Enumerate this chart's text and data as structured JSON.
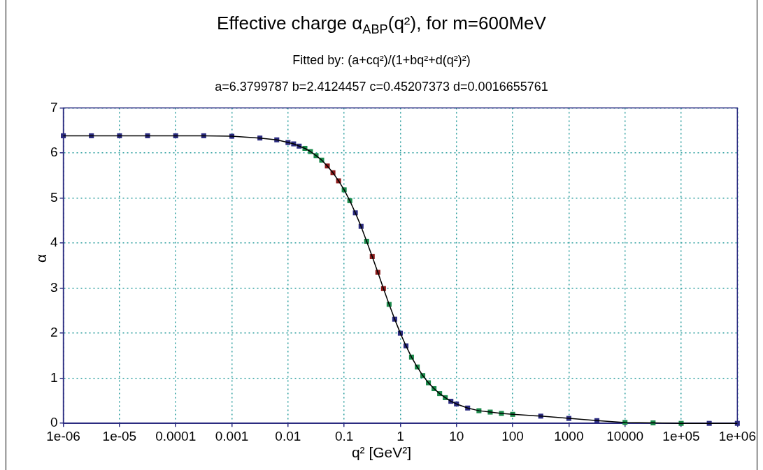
{
  "chart_data": {
    "type": "scatter",
    "title": "Effective charge α$_{ABP}$(q²), for m=600MeV",
    "subtitle": "Fitted by: (a+cq²)/(1+bq²+d(q²)²)",
    "annotations": [
      "a=6.3799787 b=2.4124457 c=0.45207373 d=0.0016655761"
    ],
    "xlabel": "q² [GeV²]",
    "ylabel": "α",
    "log": "x",
    "grid": true,
    "legend": false,
    "marker": "square",
    "x": [
      1e-06,
      3.16e-06,
      1e-05,
      3.16e-05,
      0.0001,
      0.000316,
      0.001,
      0.00316,
      0.00631,
      0.01,
      0.0126,
      0.0158,
      0.02,
      0.0251,
      0.0316,
      0.0398,
      0.0501,
      0.0631,
      0.0794,
      0.1,
      0.126,
      0.158,
      0.2,
      0.251,
      0.316,
      0.398,
      0.501,
      0.631,
      0.794,
      1,
      1.26,
      1.58,
      2,
      2.51,
      3.16,
      3.98,
      5.01,
      6.31,
      7.94,
      10,
      15.8,
      25.1,
      39.8,
      63.1,
      100,
      316,
      1000,
      3160,
      10000,
      31600,
      100000,
      316000,
      1000000
    ],
    "series": [
      {
        "type": "scatter",
        "color": "#2b2b80",
        "colors": [
          "#2b2b80",
          "#2b2b80",
          "#2b2b80",
          "#2b2b80",
          "#2b2b80",
          "#2b2b80",
          "#2b2b80",
          "#2b2b80",
          "#2b2b80",
          "#2b2b80",
          "#2b2b80",
          "#2b2b80",
          "#1a8a4a",
          "#1a8a4a",
          "#1a8a4a",
          "#1a8a4a",
          "#8b1a1a",
          "#8b1a1a",
          "#8b1a1a",
          "#1a8a4a",
          "#1a8a4a",
          "#2b2b80",
          "#2b2b80",
          "#1a8a4a",
          "#8b1a1a",
          "#8b1a1a",
          "#8b1a1a",
          "#1a8a4a",
          "#2b2b80",
          "#2b2b80",
          "#2b2b80",
          "#1a8a4a",
          "#1a8a4a",
          "#1a8a4a",
          "#1a8a4a",
          "#1a8a4a",
          "#1a8a4a",
          "#1a8a4a",
          "#2b2b80",
          "#2b2b80",
          "#2b2b80",
          "#1a8a4a",
          "#1a8a4a",
          "#1a8a4a",
          "#1a8a4a",
          "#2b2b80",
          "#2b2b80",
          "#2b2b80",
          "#1a8a4a",
          "#1a8a4a",
          "#1a8a4a",
          "#2b2b80",
          "#2b2b80"
        ],
        "values": [
          6.38,
          6.38,
          6.38,
          6.38,
          6.38,
          6.38,
          6.37,
          6.33,
          6.29,
          6.23,
          6.2,
          6.15,
          6.1,
          6.03,
          5.94,
          5.84,
          5.71,
          5.56,
          5.38,
          5.18,
          4.94,
          4.67,
          4.37,
          4.04,
          3.7,
          3.35,
          2.99,
          2.64,
          2.31,
          2,
          1.72,
          1.47,
          1.25,
          1.06,
          0.9,
          0.77,
          0.66,
          0.57,
          0.49,
          0.43,
          0.34,
          0.28,
          0.25,
          0.22,
          0.2,
          0.16,
          0.11,
          0.06,
          0.02,
          0.01,
          0,
          0,
          0
        ]
      },
      {
        "type": "line",
        "color": "#000000",
        "marker": "none",
        "values": [
          6.38,
          6.38,
          6.38,
          6.38,
          6.38,
          6.38,
          6.37,
          6.33,
          6.29,
          6.23,
          6.2,
          6.15,
          6.1,
          6.03,
          5.94,
          5.84,
          5.71,
          5.56,
          5.38,
          5.18,
          4.94,
          4.67,
          4.37,
          4.04,
          3.7,
          3.35,
          2.99,
          2.64,
          2.31,
          2,
          1.72,
          1.47,
          1.25,
          1.06,
          0.9,
          0.77,
          0.66,
          0.57,
          0.49,
          0.43,
          0.34,
          0.28,
          0.25,
          0.22,
          0.2,
          0.16,
          0.11,
          0.06,
          0.02,
          0.01,
          0,
          0,
          0
        ]
      }
    ],
    "xlim": [
      1e-06,
      1000000
    ],
    "xticks": [
      {
        "value": 1e-06,
        "label": "1e-06"
      },
      {
        "value": 1e-05,
        "label": "1e-05"
      },
      0.0001,
      0.001,
      0.01,
      0.1,
      1,
      10,
      100,
      1000,
      10000,
      {
        "value": 100000,
        "label": "1e+05"
      },
      {
        "value": 1000000,
        "label": "1e+06"
      }
    ],
    "ylim": [
      0,
      7
    ],
    "yticks": [
      0,
      1,
      2,
      3,
      4,
      5,
      6,
      7
    ]
  }
}
